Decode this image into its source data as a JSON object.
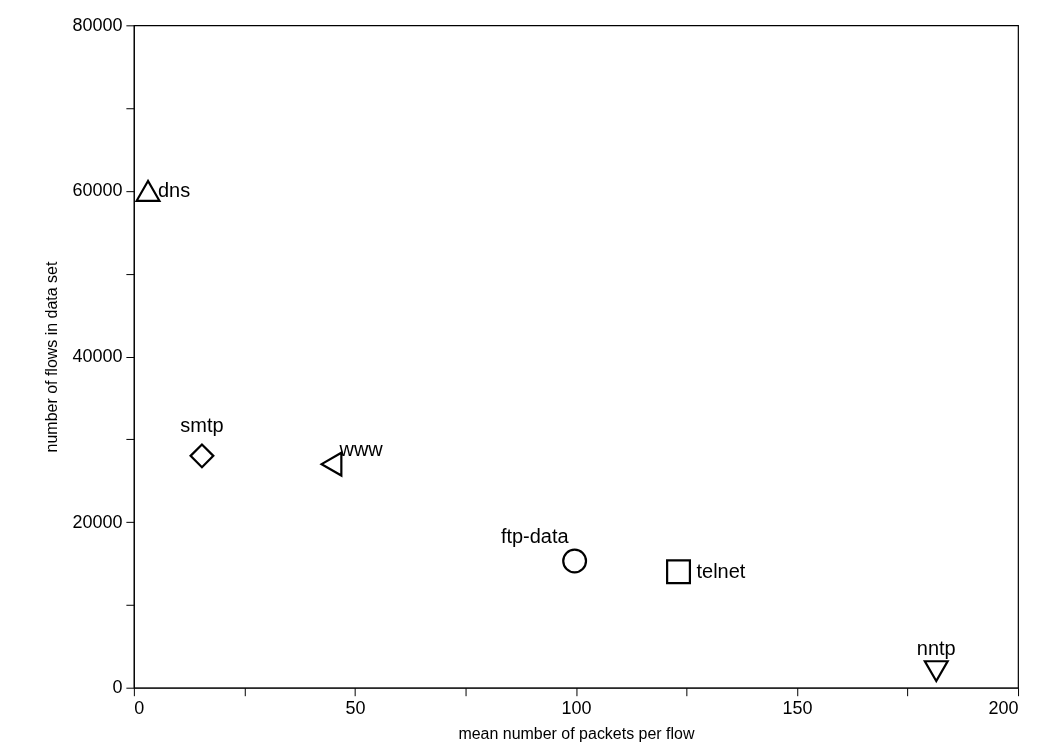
{
  "chart_data": {
    "type": "scatter",
    "xlabel": "mean number of packets per flow",
    "ylabel": "number of flows in data set",
    "xlim": [
      0,
      200
    ],
    "ylim": [
      0,
      80000
    ],
    "xticks": [
      0,
      {
        "value": 25,
        "label": null
      },
      50,
      {
        "value": 75,
        "label": null
      },
      100,
      {
        "value": 125,
        "label": null
      },
      150,
      {
        "value": 175,
        "label": null
      },
      200
    ],
    "yticks": [
      0,
      {
        "value": 10000,
        "label": null
      },
      20000,
      {
        "value": 30000,
        "label": null
      },
      40000,
      {
        "value": 50000,
        "label": null
      },
      60000,
      {
        "value": 70000,
        "label": null
      },
      80000
    ],
    "grid": false,
    "series": [
      {
        "name": "dns",
        "color": "#000000",
        "marker": "triangle",
        "x": [
          3.2
        ],
        "values": [
          60000
        ]
      },
      {
        "name": "smtp",
        "color": "#000000",
        "marker": "diamond",
        "x": [
          15.4
        ],
        "values": [
          28000
        ]
      },
      {
        "name": "www",
        "color": "#000000",
        "marker": "triangle-left",
        "x": [
          44.7
        ],
        "values": [
          27000
        ]
      },
      {
        "name": "ftp-data",
        "color": "#000000",
        "marker": "circle",
        "x": [
          99.7
        ],
        "values": [
          15300
        ]
      },
      {
        "name": "telnet",
        "color": "#000000",
        "marker": "square",
        "x": [
          123.2
        ],
        "values": [
          14000
        ]
      },
      {
        "name": "nntp",
        "color": "#000000",
        "marker": "triangle-down",
        "x": [
          181.5
        ],
        "values": [
          2000
        ]
      }
    ]
  }
}
